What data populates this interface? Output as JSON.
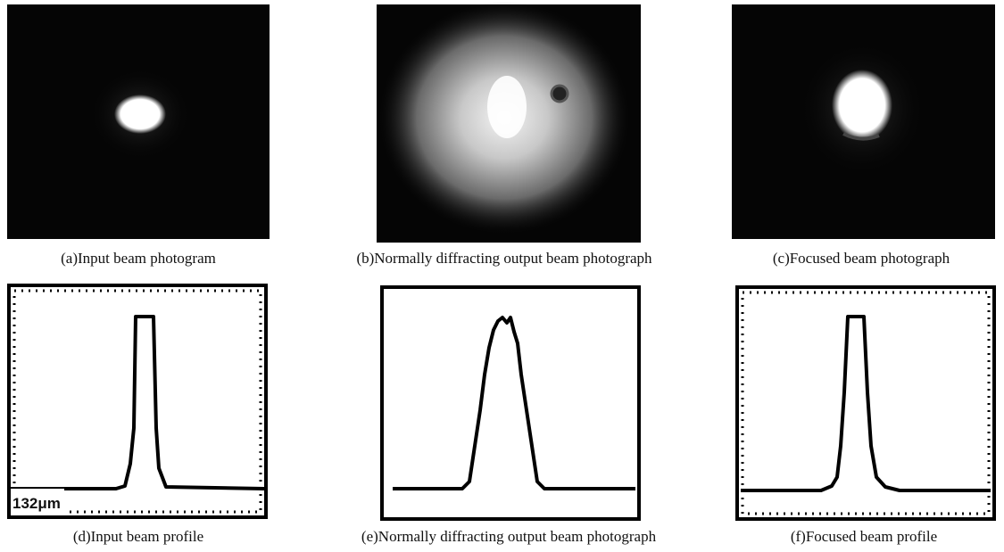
{
  "panels": [
    {
      "caption": "(a)Input beam photogram"
    },
    {
      "caption": "(b)Normally diffracting output beam photograph"
    },
    {
      "caption": "(c)Focused beam photograph"
    },
    {
      "caption": "(d)Input beam profile"
    },
    {
      "caption": "(e)Normally diffracting output beam photograph"
    },
    {
      "caption": "(f)Focused beam profile"
    }
  ],
  "scale_label": "132μm"
}
